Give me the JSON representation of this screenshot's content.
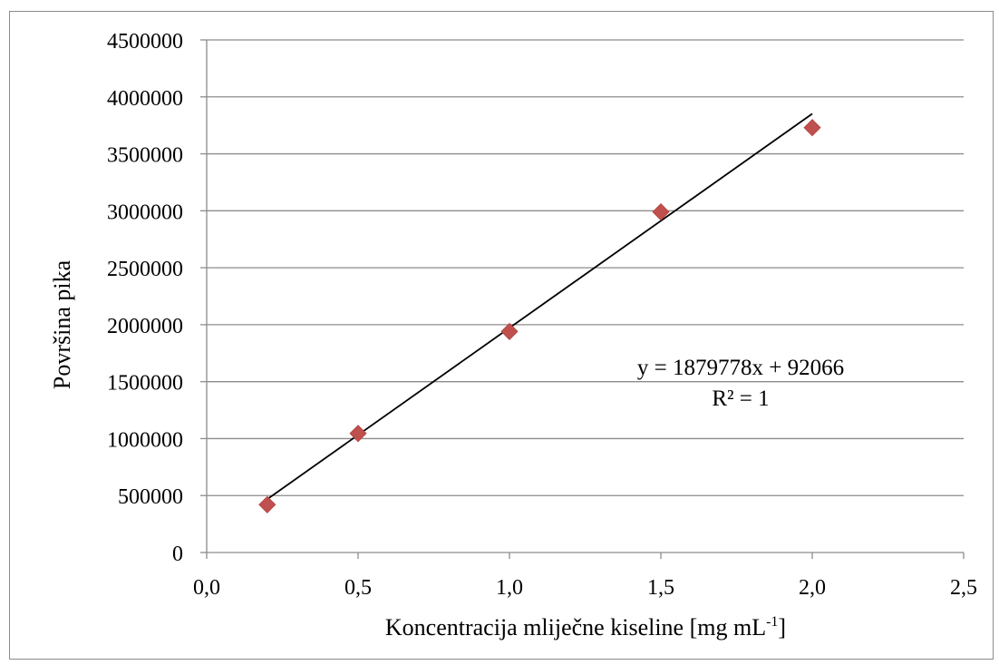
{
  "chart_data": {
    "type": "scatter",
    "title": "",
    "xlabel": "Koncentracija mliječne kiseline [mg mL",
    "xlabel_superscript": "-1",
    "xlabel_suffix": "]",
    "ylabel": "Površina pika",
    "xlim": [
      0,
      2.5
    ],
    "ylim": [
      0,
      4500000
    ],
    "x_ticks": [
      "0,0",
      "0,5",
      "1,0",
      "1,5",
      "2,0",
      "2,5"
    ],
    "y_ticks": [
      "0",
      "500000",
      "1000000",
      "1500000",
      "2000000",
      "2500000",
      "3000000",
      "3500000",
      "4000000",
      "4500000"
    ],
    "grid": "horizontal",
    "series": [
      {
        "marker": "diamond",
        "color": "#c0504d",
        "points": [
          {
            "x": 0.2,
            "y": 420000
          },
          {
            "x": 0.5,
            "y": 1045000
          },
          {
            "x": 1.0,
            "y": 1940000
          },
          {
            "x": 1.5,
            "y": 2990000
          },
          {
            "x": 2.0,
            "y": 3730000
          }
        ]
      }
    ],
    "trendline": {
      "type": "linear",
      "slope": 1879778,
      "intercept": 92066,
      "x_from": 0.2,
      "x_to": 2.0,
      "color": "#000000",
      "equation_text": "y = 1879778x + 92066",
      "r2_text": "R² = 1"
    }
  }
}
